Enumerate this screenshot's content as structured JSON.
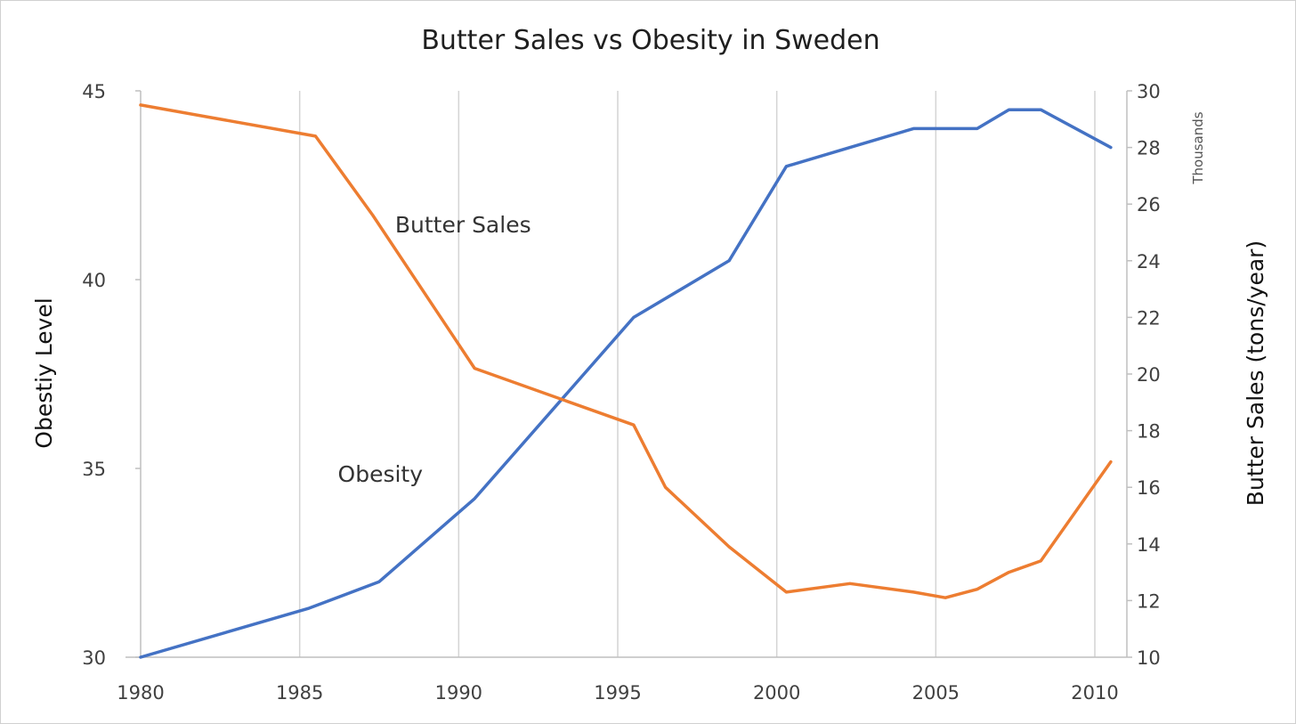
{
  "chart_data": {
    "type": "line",
    "title": "Butter Sales vs Obesity in Sweden",
    "xlabel": "",
    "x_ticks": [
      1980,
      1985,
      1990,
      1995,
      2000,
      2005,
      2010
    ],
    "xlim": [
      1980,
      2010
    ],
    "y_left": {
      "label": "Obestiy Level",
      "ticks": [
        30,
        35,
        40,
        45
      ],
      "ylim": [
        30,
        45
      ]
    },
    "y_right": {
      "label": "Butter Sales (tons/year)",
      "unit": "Thousands",
      "ticks": [
        10,
        12,
        14,
        16,
        18,
        20,
        22,
        24,
        26,
        28,
        30
      ],
      "ylim": [
        10,
        30
      ]
    },
    "grid": {
      "vertical": true,
      "horizontal": false
    },
    "series": [
      {
        "name": "Obesity",
        "axis": "left",
        "color": "#4472C4",
        "points": [
          [
            1980,
            30.0
          ],
          [
            1985.3,
            31.3
          ],
          [
            1987.5,
            32.0
          ],
          [
            1990.5,
            34.2
          ],
          [
            1995.5,
            39.0
          ],
          [
            1998.5,
            40.5
          ],
          [
            2000.3,
            43.0
          ],
          [
            2002.3,
            43.5
          ],
          [
            2004.3,
            44.0
          ],
          [
            2005.3,
            44.0
          ],
          [
            2006.3,
            44.0
          ],
          [
            2007.3,
            44.5
          ],
          [
            2008.3,
            44.5
          ],
          [
            2010.5,
            43.5
          ]
        ]
      },
      {
        "name": "Butter Sales",
        "axis": "right",
        "color": "#ED7D31",
        "points": [
          [
            1980,
            29.5
          ],
          [
            1985.5,
            28.4
          ],
          [
            1987.3,
            25.6
          ],
          [
            1990.5,
            20.2
          ],
          [
            1995.5,
            18.2
          ],
          [
            1996.5,
            16.0
          ],
          [
            1998.5,
            13.9
          ],
          [
            2000.3,
            12.3
          ],
          [
            2002.3,
            12.6
          ],
          [
            2004.3,
            12.3
          ],
          [
            2005.3,
            12.1
          ],
          [
            2006.3,
            12.4
          ],
          [
            2007.3,
            13.0
          ],
          [
            2008.3,
            13.4
          ],
          [
            2010.5,
            16.9
          ]
        ]
      }
    ],
    "annotations": [
      {
        "text": "Butter Sales",
        "x": 1988.0,
        "y_right": 25.0
      },
      {
        "text": "Obesity",
        "x": 1986.2,
        "y_right": 16.2
      }
    ]
  }
}
